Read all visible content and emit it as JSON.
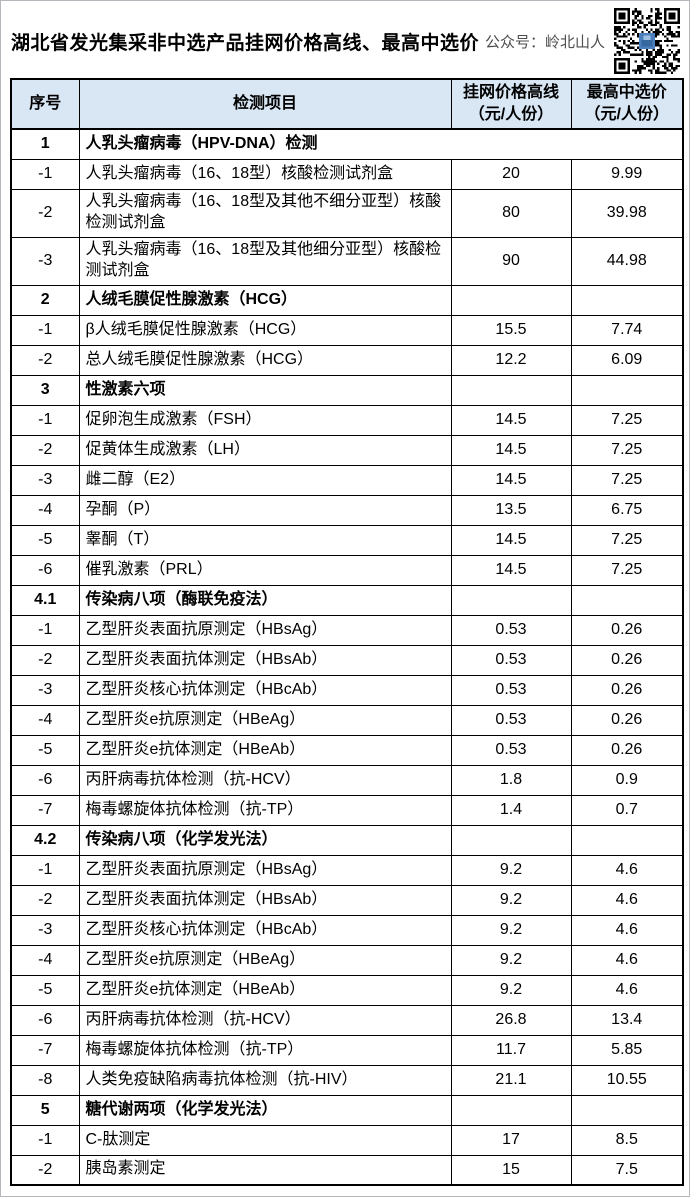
{
  "page": {
    "title": "湖北省发光集采非中选产品挂网价格高线、最高中选价",
    "wechat_label": "公众号：岭北山人"
  },
  "colors": {
    "header_bg": "#d9e7f5",
    "grid_border": "#000000",
    "qr_logo": "#4d7fbe"
  },
  "table": {
    "headers": {
      "no": "序号",
      "item": "检测项目",
      "price_high_line1": "挂网价格高线",
      "price_high_line2": "（元/人份）",
      "price_win_line1": "最高中选价",
      "price_win_line2": "（元/人份）"
    },
    "rows": [
      {
        "no": "1",
        "item": "人乳头瘤病毒（HPV-DNA）检测",
        "price_high": "",
        "price_win": "",
        "type": "section",
        "merged": true
      },
      {
        "no": "-1",
        "item": "人乳头瘤病毒（16、18型）核酸检测试剂盒",
        "price_high": "20",
        "price_win": "9.99",
        "type": "item"
      },
      {
        "no": "-2",
        "item": "人乳头瘤病毒（16、18型及其他不细分亚型）核酸检测试剂盒",
        "price_high": "80",
        "price_win": "39.98",
        "type": "item",
        "tall": true
      },
      {
        "no": "-3",
        "item": "人乳头瘤病毒（16、18型及其他细分亚型）核酸检测试剂盒",
        "price_high": "90",
        "price_win": "44.98",
        "type": "item",
        "tall": true
      },
      {
        "no": "2",
        "item": "人绒毛膜促性腺激素（HCG）",
        "price_high": "",
        "price_win": "",
        "type": "section"
      },
      {
        "no": "-1",
        "item": "β人绒毛膜促性腺激素（HCG）",
        "price_high": "15.5",
        "price_win": "7.74",
        "type": "item"
      },
      {
        "no": "-2",
        "item": "总人绒毛膜促性腺激素（HCG）",
        "price_high": "12.2",
        "price_win": "6.09",
        "type": "item"
      },
      {
        "no": "3",
        "item": "性激素六项",
        "price_high": "",
        "price_win": "",
        "type": "section"
      },
      {
        "no": "-1",
        "item": "促卵泡生成激素（FSH）",
        "price_high": "14.5",
        "price_win": "7.25",
        "type": "item"
      },
      {
        "no": "-2",
        "item": "促黄体生成激素（LH）",
        "price_high": "14.5",
        "price_win": "7.25",
        "type": "item"
      },
      {
        "no": "-3",
        "item": "雌二醇（E2）",
        "price_high": "14.5",
        "price_win": "7.25",
        "type": "item"
      },
      {
        "no": "-4",
        "item": "孕酮（P）",
        "price_high": "13.5",
        "price_win": "6.75",
        "type": "item"
      },
      {
        "no": "-5",
        "item": "睾酮（T）",
        "price_high": "14.5",
        "price_win": "7.25",
        "type": "item"
      },
      {
        "no": "-6",
        "item": "催乳激素（PRL）",
        "price_high": "14.5",
        "price_win": "7.25",
        "type": "item"
      },
      {
        "no": "4.1",
        "item": "传染病八项（酶联免疫法）",
        "price_high": "",
        "price_win": "",
        "type": "section"
      },
      {
        "no": "-1",
        "item": "乙型肝炎表面抗原测定（HBsAg）",
        "price_high": "0.53",
        "price_win": "0.26",
        "type": "item"
      },
      {
        "no": "-2",
        "item": "乙型肝炎表面抗体测定（HBsAb）",
        "price_high": "0.53",
        "price_win": "0.26",
        "type": "item"
      },
      {
        "no": "-3",
        "item": "乙型肝炎核心抗体测定（HBcAb）",
        "price_high": "0.53",
        "price_win": "0.26",
        "type": "item"
      },
      {
        "no": "-4",
        "item": "乙型肝炎e抗原测定（HBeAg）",
        "price_high": "0.53",
        "price_win": "0.26",
        "type": "item"
      },
      {
        "no": "-5",
        "item": "乙型肝炎e抗体测定（HBeAb）",
        "price_high": "0.53",
        "price_win": "0.26",
        "type": "item"
      },
      {
        "no": "-6",
        "item": "丙肝病毒抗体检测（抗-HCV）",
        "price_high": "1.8",
        "price_win": "0.9",
        "type": "item"
      },
      {
        "no": "-7",
        "item": "梅毒螺旋体抗体检测（抗-TP）",
        "price_high": "1.4",
        "price_win": "0.7",
        "type": "item"
      },
      {
        "no": "4.2",
        "item": "传染病八项（化学发光法）",
        "price_high": "",
        "price_win": "",
        "type": "section"
      },
      {
        "no": "-1",
        "item": "乙型肝炎表面抗原测定（HBsAg）",
        "price_high": "9.2",
        "price_win": "4.6",
        "type": "item"
      },
      {
        "no": "-2",
        "item": "乙型肝炎表面抗体测定（HBsAb）",
        "price_high": "9.2",
        "price_win": "4.6",
        "type": "item"
      },
      {
        "no": "-3",
        "item": "乙型肝炎核心抗体测定（HBcAb）",
        "price_high": "9.2",
        "price_win": "4.6",
        "type": "item"
      },
      {
        "no": "-4",
        "item": "乙型肝炎e抗原测定（HBeAg）",
        "price_high": "9.2",
        "price_win": "4.6",
        "type": "item"
      },
      {
        "no": "-5",
        "item": "乙型肝炎e抗体测定（HBeAb）",
        "price_high": "9.2",
        "price_win": "4.6",
        "type": "item"
      },
      {
        "no": "-6",
        "item": "丙肝病毒抗体检测（抗-HCV）",
        "price_high": "26.8",
        "price_win": "13.4",
        "type": "item"
      },
      {
        "no": "-7",
        "item": "梅毒螺旋体抗体检测（抗-TP）",
        "price_high": "11.7",
        "price_win": "5.85",
        "type": "item"
      },
      {
        "no": "-8",
        "item": "人类免疫缺陷病毒抗体检测（抗-HIV）",
        "price_high": "21.1",
        "price_win": "10.55",
        "type": "item"
      },
      {
        "no": "5",
        "item": "糖代谢两项（化学发光法）",
        "price_high": "",
        "price_win": "",
        "type": "section"
      },
      {
        "no": "-1",
        "item": "C-肽测定",
        "price_high": "17",
        "price_win": "8.5",
        "type": "item"
      },
      {
        "no": "-2",
        "item": "胰岛素测定",
        "price_high": "15",
        "price_win": "7.5",
        "type": "item"
      }
    ]
  }
}
